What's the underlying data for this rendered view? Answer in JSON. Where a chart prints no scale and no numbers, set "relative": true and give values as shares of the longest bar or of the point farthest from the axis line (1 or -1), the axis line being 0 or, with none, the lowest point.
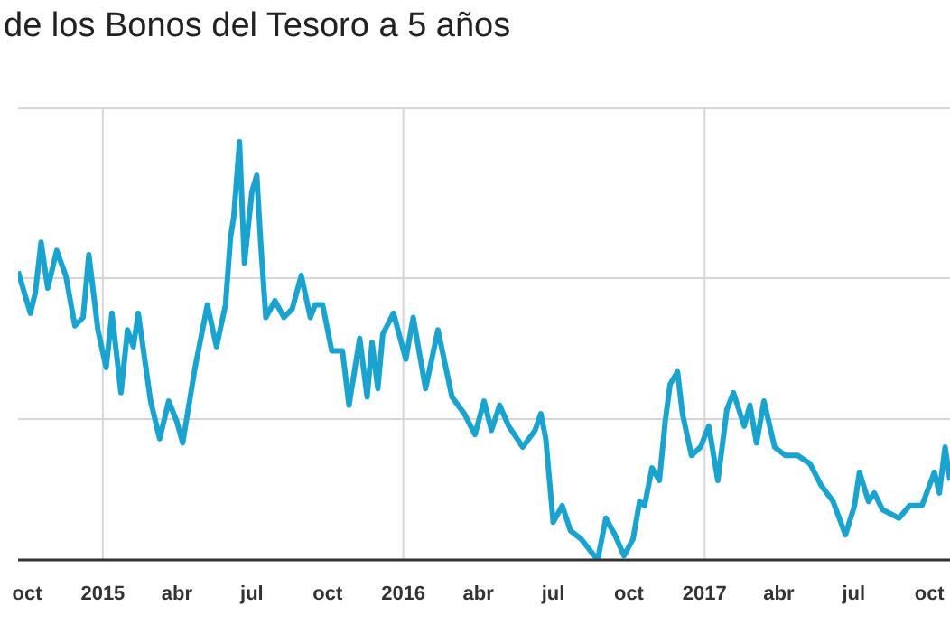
{
  "chart_data": {
    "type": "line",
    "title": "de los Bonos del Tesoro a 5 años",
    "relative": true,
    "grid": true,
    "marker": "none",
    "line_style": "solid",
    "xlim": [
      "2014-09-20",
      "2017-10-26"
    ],
    "xticks": [
      {
        "value": "2014-10-01",
        "label": "oct"
      },
      {
        "value": "2015-01-01",
        "label": "2015"
      },
      {
        "value": "2015-04-01",
        "label": "abr"
      },
      {
        "value": "2015-07-01",
        "label": "jul"
      },
      {
        "value": "2015-10-01",
        "label": "oct"
      },
      {
        "value": "2016-01-01",
        "label": "2016"
      },
      {
        "value": "2016-04-01",
        "label": "abr"
      },
      {
        "value": "2016-07-01",
        "label": "jul"
      },
      {
        "value": "2016-10-01",
        "label": "oct"
      },
      {
        "value": "2017-01-01",
        "label": "2017"
      },
      {
        "value": "2017-04-01",
        "label": "abr"
      },
      {
        "value": "2017-07-01",
        "label": "jul"
      },
      {
        "value": "2017-10-01",
        "label": "oct"
      }
    ],
    "x": [
      "2014-09-20",
      "2014-09-26",
      "2014-10-05",
      "2014-10-11",
      "2014-10-18",
      "2014-10-26",
      "2014-11-06",
      "2014-11-17",
      "2014-11-28",
      "2014-12-08",
      "2014-12-15",
      "2014-12-26",
      "2015-01-05",
      "2015-01-12",
      "2015-01-23",
      "2015-01-31",
      "2015-02-07",
      "2015-02-13",
      "2015-02-28",
      "2015-03-11",
      "2015-03-22",
      "2015-04-01",
      "2015-04-08",
      "2015-04-23",
      "2015-05-08",
      "2015-05-19",
      "2015-05-30",
      "2015-06-05",
      "2015-06-09",
      "2015-06-16",
      "2015-06-22",
      "2015-07-01",
      "2015-07-07",
      "2015-07-12",
      "2015-07-18",
      "2015-07-29",
      "2015-08-09",
      "2015-08-19",
      "2015-08-30",
      "2015-09-10",
      "2015-09-16",
      "2015-09-25",
      "2015-10-06",
      "2015-10-19",
      "2015-10-27",
      "2015-11-09",
      "2015-11-18",
      "2015-11-24",
      "2015-12-01",
      "2015-12-07",
      "2015-12-20",
      "2016-01-04",
      "2016-01-13",
      "2016-01-28",
      "2016-02-12",
      "2016-02-29",
      "2016-03-15",
      "2016-03-28",
      "2016-04-08",
      "2016-04-17",
      "2016-04-27",
      "2016-05-08",
      "2016-05-25",
      "2016-06-09",
      "2016-06-16",
      "2016-06-22",
      "2016-07-01",
      "2016-07-12",
      "2016-07-22",
      "2016-08-04",
      "2016-08-24",
      "2016-09-03",
      "2016-09-14",
      "2016-09-25",
      "2016-10-06",
      "2016-10-14",
      "2016-10-20",
      "2016-10-29",
      "2016-11-07",
      "2016-11-14",
      "2016-11-20",
      "2016-11-29",
      "2016-12-05",
      "2016-12-16",
      "2016-12-27",
      "2017-01-06",
      "2017-01-17",
      "2017-01-28",
      "2017-02-05",
      "2017-02-18",
      "2017-02-25",
      "2017-03-05",
      "2017-03-14",
      "2017-03-27",
      "2017-04-09",
      "2017-04-24",
      "2017-05-09",
      "2017-05-22",
      "2017-06-06",
      "2017-06-21",
      "2017-07-02",
      "2017-07-08",
      "2017-07-19",
      "2017-07-26",
      "2017-08-05",
      "2017-08-25",
      "2017-09-07",
      "2017-09-22",
      "2017-10-07",
      "2017-10-13",
      "2017-10-20",
      "2017-10-26"
    ],
    "series": [
      {
        "color": "#1ba3d0",
        "values": [
          0.69,
          0.65,
          0.59,
          0.64,
          0.76,
          0.65,
          0.74,
          0.68,
          0.56,
          0.58,
          0.73,
          0.55,
          0.46,
          0.59,
          0.4,
          0.55,
          0.51,
          0.59,
          0.38,
          0.29,
          0.38,
          0.33,
          0.28,
          0.46,
          0.61,
          0.51,
          0.61,
          0.77,
          0.82,
          1.0,
          0.71,
          0.88,
          0.92,
          0.75,
          0.58,
          0.62,
          0.58,
          0.6,
          0.68,
          0.58,
          0.61,
          0.61,
          0.5,
          0.5,
          0.37,
          0.53,
          0.39,
          0.52,
          0.41,
          0.54,
          0.59,
          0.48,
          0.58,
          0.41,
          0.55,
          0.39,
          0.35,
          0.3,
          0.38,
          0.31,
          0.37,
          0.32,
          0.27,
          0.31,
          0.35,
          0.29,
          0.09,
          0.13,
          0.07,
          0.05,
          0.0,
          0.1,
          0.06,
          0.01,
          0.05,
          0.14,
          0.13,
          0.22,
          0.19,
          0.33,
          0.42,
          0.45,
          0.35,
          0.25,
          0.27,
          0.32,
          0.19,
          0.36,
          0.4,
          0.32,
          0.37,
          0.28,
          0.38,
          0.27,
          0.25,
          0.25,
          0.23,
          0.18,
          0.14,
          0.06,
          0.13,
          0.21,
          0.14,
          0.16,
          0.12,
          0.1,
          0.13,
          0.13,
          0.21,
          0.16,
          0.27,
          0.19
        ]
      }
    ]
  }
}
